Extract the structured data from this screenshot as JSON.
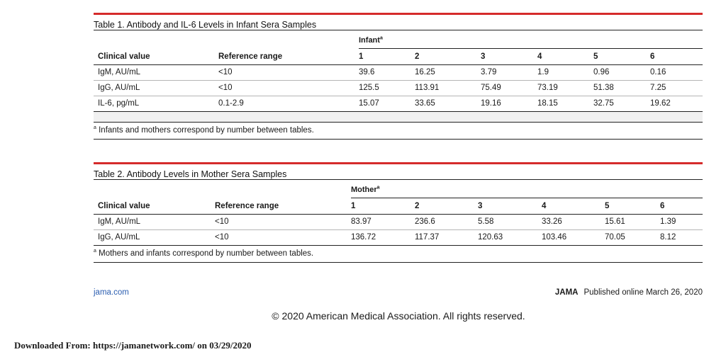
{
  "table1": {
    "title": "Table 1. Antibody and IL-6 Levels in Infant Sera Samples",
    "group_label": "Infant",
    "group_sup": "a",
    "headers": [
      "Clinical value",
      "Reference range",
      "1",
      "2",
      "3",
      "4",
      "5",
      "6"
    ],
    "rows": [
      [
        "IgM, AU/mL",
        "<10",
        "39.6",
        "16.25",
        "3.79",
        "1.9",
        "0.96",
        "0.16"
      ],
      [
        "IgG, AU/mL",
        "<10",
        "125.5",
        "113.91",
        "75.49",
        "73.19",
        "51.38",
        "7.25"
      ],
      [
        "IL-6, pg/mL",
        "0.1-2.9",
        "15.07",
        "33.65",
        "19.16",
        "18.15",
        "32.75",
        "19.62"
      ]
    ],
    "footnote_mark": "a",
    "footnote": "Infants and mothers correspond by number between tables."
  },
  "table2": {
    "title": "Table 2. Antibody Levels in Mother Sera Samples",
    "group_label": "Mother",
    "group_sup": "a",
    "headers": [
      "Clinical value",
      "Reference range",
      "1",
      "2",
      "3",
      "4",
      "5",
      "6"
    ],
    "rows": [
      [
        "IgM, AU/mL",
        "<10",
        "83.97",
        "236.6",
        "5.58",
        "33.26",
        "15.61",
        "1.39"
      ],
      [
        "IgG, AU/mL",
        "<10",
        "136.72",
        "117.37",
        "120.63",
        "103.46",
        "70.05",
        "8.12"
      ]
    ],
    "footnote_mark": "a",
    "footnote": "Mothers and infants correspond by number between tables."
  },
  "footer": {
    "site": "jama.com",
    "journal": "JAMA",
    "published": "Published online March 26, 2020",
    "copyright": "© 2020 American Medical Association. All rights reserved.",
    "download": "Downloaded From: https://jamanetwork.com/ on 03/29/2020"
  },
  "colors": {
    "rule": "#d52b2b",
    "link": "#2a5db0"
  }
}
